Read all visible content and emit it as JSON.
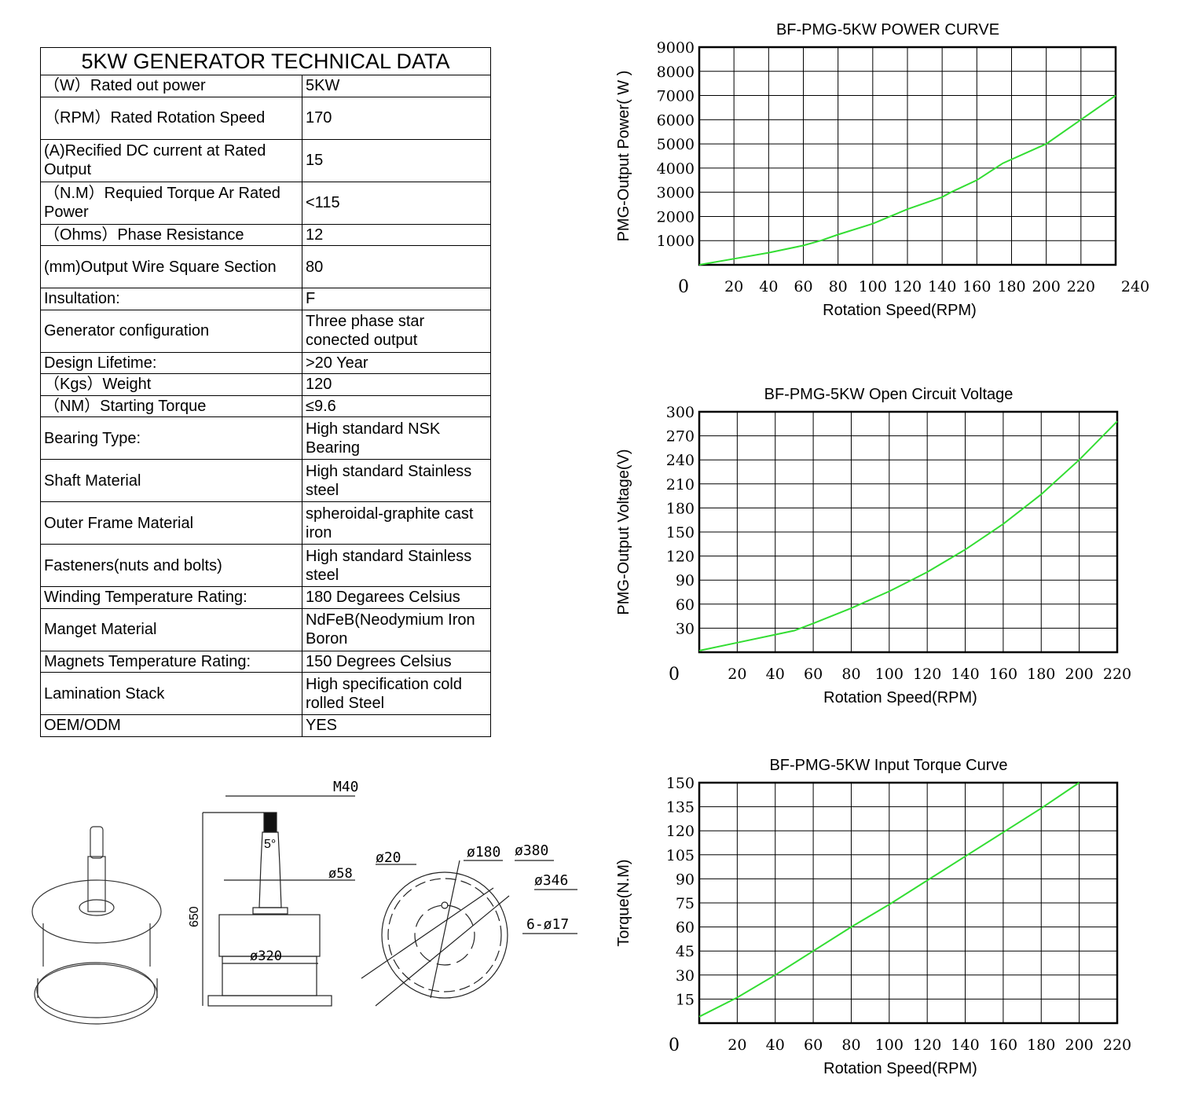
{
  "table": {
    "title": "5KW GENERATOR TECHNICAL DATA",
    "rows": [
      {
        "label": "（W）Rated out power",
        "value": "5KW",
        "h": 1
      },
      {
        "label": "（RPM）Rated Rotation Speed",
        "value": "170",
        "h": 2
      },
      {
        "label": "(A)Recified DC current at Rated Output",
        "value": "15",
        "h": 2
      },
      {
        "label": "（N.M）Requied Torque Ar Rated Power",
        "value": "<115",
        "h": 2
      },
      {
        "label": "（Ohms）Phase Resistance",
        "value": "12",
        "h": 1
      },
      {
        "label": "(mm)Output Wire Square Section",
        "value": "80",
        "h": 2
      },
      {
        "label": " Insultation:",
        "value": "F",
        "h": 1
      },
      {
        "label": " Generator configuration",
        "value": "Three phase star conected output",
        "h": 2
      },
      {
        "label": " Design Lifetime:",
        "value": ">20  Year",
        "h": 1
      },
      {
        "label": " （Kgs）Weight",
        "value": "120",
        "h": 1
      },
      {
        "label": " （NM）Starting Torque",
        "value": "≤9.6",
        "h": 1
      },
      {
        "label": " Bearing Type:",
        "value": "High standard NSK Bearing",
        "h": 2
      },
      {
        "label": " Shaft Material",
        "value": "High standard Stainless steel",
        "h": 2
      },
      {
        "label": " Outer Frame Material",
        "value": "spheroidal-graphite cast iron",
        "h": 2
      },
      {
        "label": " Fasteners(nuts and bolts)",
        "value": "High standard Stainless steel",
        "h": 2
      },
      {
        "label": " Winding Temperature Rating:",
        "value": "180 Degarees Celsius",
        "h": 1
      },
      {
        "label": " Manget Material",
        "value": "NdFeB(Neodymium Iron Boron",
        "h": 2
      },
      {
        "label": " Magnets Temperature Rating:",
        "value": "150 Degrees Celsius",
        "h": 1
      },
      {
        "label": " Lamination Stack",
        "value": "High specification cold rolled Steel",
        "h": 2
      },
      {
        "label": "OEM/ODM",
        "value": "YES",
        "h": 1
      }
    ]
  },
  "drawing": {
    "labels": {
      "m40": "M40",
      "angle": "5°",
      "d58": "ø58",
      "h650": "650",
      "d320": "ø320",
      "d20": "ø20",
      "d180": "ø180",
      "d380": "ø380",
      "d346": "ø346",
      "holes": "6-ø17"
    }
  },
  "chart_data": [
    {
      "type": "line",
      "title": "BF-PMG-5KW POWER CURVE",
      "xlabel": "Rotation Speed(RPM)",
      "ylabel": "PMG-Output Power(  W  )",
      "xlim": [
        0,
        240
      ],
      "ylim": [
        0,
        9000
      ],
      "xticks": [
        0,
        20,
        40,
        60,
        80,
        100,
        120,
        140,
        160,
        180,
        200,
        220,
        240
      ],
      "yticks": [
        0,
        1000,
        2000,
        3000,
        4000,
        5000,
        6000,
        7000,
        8000,
        9000
      ],
      "grid": true,
      "line_color": "#33dd33",
      "x": [
        0,
        20,
        40,
        60,
        70,
        80,
        100,
        110,
        120,
        140,
        145,
        160,
        175,
        200,
        220,
        240
      ],
      "y": [
        0,
        250,
        500,
        800,
        1000,
        1250,
        1700,
        2000,
        2300,
        2800,
        3000,
        3500,
        4200,
        5000,
        6000,
        7000
      ]
    },
    {
      "type": "line",
      "title": "BF-PMG-5KW Open Circuit Voltage",
      "xlabel": "Rotation Speed(RPM)",
      "ylabel": "PMG-Output Voltage(V)",
      "xlim": [
        0,
        220
      ],
      "ylim": [
        0,
        300
      ],
      "xticks": [
        0,
        20,
        40,
        60,
        80,
        100,
        120,
        140,
        160,
        180,
        200,
        220
      ],
      "yticks": [
        0,
        30,
        60,
        90,
        120,
        150,
        180,
        210,
        240,
        270,
        300
      ],
      "grid": true,
      "line_color": "#33dd33",
      "x": [
        0,
        20,
        40,
        50,
        60,
        80,
        100,
        120,
        140,
        160,
        180,
        200,
        220
      ],
      "y": [
        2,
        12,
        22,
        27,
        36,
        55,
        76,
        100,
        128,
        160,
        197,
        240,
        288
      ]
    },
    {
      "type": "line",
      "title": "BF-PMG-5KW Input Torque Curve",
      "xlabel": "Rotation Speed(RPM)",
      "ylabel": "Torque(N.M)",
      "xlim": [
        0,
        220
      ],
      "ylim": [
        0,
        150
      ],
      "xticks": [
        0,
        20,
        40,
        60,
        80,
        100,
        120,
        140,
        160,
        180,
        200,
        220
      ],
      "yticks": [
        0,
        15,
        30,
        45,
        60,
        75,
        90,
        105,
        120,
        135,
        150
      ],
      "grid": true,
      "line_color": "#33dd33",
      "x": [
        0,
        20,
        40,
        60,
        80,
        100,
        120,
        140,
        160,
        180,
        200
      ],
      "y": [
        4,
        16,
        30,
        45,
        60,
        74,
        89,
        104,
        119,
        134,
        150
      ]
    }
  ]
}
